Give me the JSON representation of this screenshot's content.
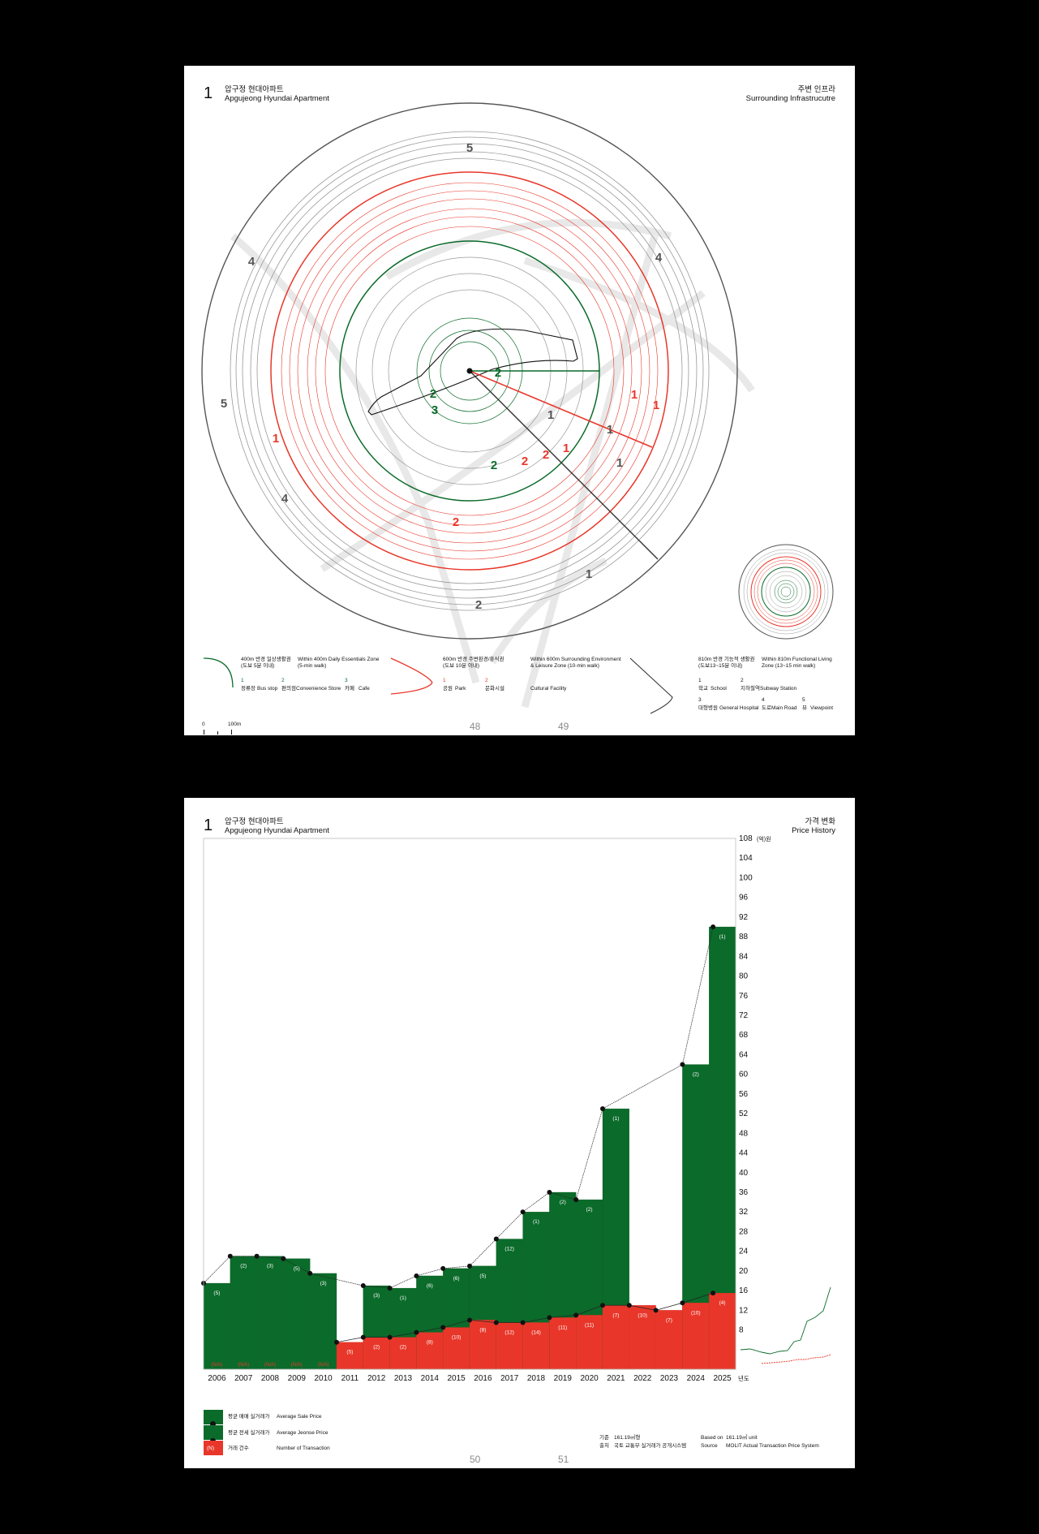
{
  "page1": {
    "number": "1",
    "title_ko": "압구정 현대아파트",
    "title_en": "Apgujeong Hyundai Apartment",
    "section_ko": "주변 인프라",
    "section_en": "Surrounding Infrastrucutre",
    "page_left": "48",
    "page_right": "49",
    "scale_zero": "0",
    "scale_label": "100m",
    "ring_labels": [
      {
        "t": "5",
        "c": "#555555"
      },
      {
        "t": "4",
        "c": "#555555"
      },
      {
        "t": "4",
        "c": "#555555"
      },
      {
        "t": "5",
        "c": "#555555"
      },
      {
        "t": "4",
        "c": "#555555"
      },
      {
        "t": "2",
        "c": "#555555"
      },
      {
        "t": "1",
        "c": "#555555"
      },
      {
        "t": "1",
        "c": "#555555"
      },
      {
        "t": "1",
        "c": "#555555"
      },
      {
        "t": "1",
        "c": "#555555"
      },
      {
        "t": "1",
        "c": "#e8372a"
      },
      {
        "t": "1",
        "c": "#e8372a"
      },
      {
        "t": "1",
        "c": "#e8372a"
      },
      {
        "t": "1",
        "c": "#e8372a"
      },
      {
        "t": "2",
        "c": "#e8372a"
      },
      {
        "t": "2",
        "c": "#e8372a"
      },
      {
        "t": "2",
        "c": "#e8372a"
      },
      {
        "t": "2",
        "c": "#0b6b2a"
      },
      {
        "t": "2",
        "c": "#0b6b2a"
      },
      {
        "t": "3",
        "c": "#0b6b2a"
      },
      {
        "t": "2",
        "c": "#0b6b2a"
      }
    ],
    "legend": {
      "zone400": {
        "ko": "400m 반경 일상생활권",
        "ko2": "(도보 5분 이내)",
        "en": "Within 400m Daily Essentials Zone",
        "en2": "(5-min walk)",
        "items": [
          {
            "n": "1",
            "ko": "정류장",
            "en": "Bus stop"
          },
          {
            "n": "2",
            "ko": "편의점",
            "en": "Convenience Store"
          },
          {
            "n": "3",
            "ko": "카페",
            "en": "Cafe"
          }
        ]
      },
      "zone600": {
        "ko": "600m 반경 주변환경/휴식권",
        "ko2": "(도보 10분 이내)",
        "en": "Within 600m Surrounding Environment",
        "en2": "& Leisure Zone (10-min walk)",
        "items": [
          {
            "n": "1",
            "ko": "공원",
            "en": "Park"
          },
          {
            "n": "2",
            "ko": "문화시설",
            "en": "Cultural Facility"
          }
        ]
      },
      "zone810": {
        "ko": "810m 반경 기능적 생활권",
        "ko2": "(도보13~15분 이내)",
        "en": "Within 810m Functional Living",
        "en2": "Zone (13~15 min walk)",
        "items": [
          {
            "n": "1",
            "ko": "학교",
            "en": "School"
          },
          {
            "n": "2",
            "ko": "지하철역",
            "en": "Subway Station"
          },
          {
            "n": "3",
            "ko": "대형병원",
            "en": "General Hospital"
          },
          {
            "n": "4",
            "ko": "도로",
            "en": "Main Road"
          },
          {
            "n": "5",
            "ko": "뷰",
            "en": "Viewpoint"
          }
        ]
      }
    },
    "colors": {
      "green": "#0b6b2a",
      "red": "#e8372a",
      "grey": "#555555"
    }
  },
  "page2": {
    "number": "1",
    "title_ko": "압구정 현대아파트",
    "title_en": "Apgujeong Hyundai Apartment",
    "section_ko": "가격 변화",
    "section_en": "Price History",
    "page_left": "50",
    "page_right": "51",
    "legend": {
      "sale_ko": "평균 매매 실거래가",
      "sale_en": "Average Sale Price",
      "jeonse_ko": "평균 전세 실거래가",
      "jeonse_en": "Average Jeonse Price",
      "count_marker": "(N)",
      "count_ko": "거래 건수",
      "count_en": "Number of Transaction"
    },
    "source": {
      "basis_ko_label": "기준",
      "basis_ko": "161.19㎡형",
      "source_ko_label": "출처",
      "source_ko": "국토 교통부 실거래가 공개시스템",
      "basis_en_label": "Based on",
      "basis_en": "161.19㎡ unit",
      "source_en_label": "Source",
      "source_en": "MOLIT Actual Transaction Price System"
    }
  },
  "chart_data": {
    "type": "bar",
    "title": "",
    "xlabel": "년도",
    "ylabel": "(억)원",
    "ylim": [
      0,
      108
    ],
    "yticks": [
      8,
      12,
      16,
      20,
      24,
      28,
      32,
      36,
      40,
      44,
      48,
      52,
      56,
      60,
      64,
      68,
      72,
      76,
      80,
      84,
      88,
      92,
      96,
      100,
      104,
      108
    ],
    "categories": [
      "2006",
      "2007",
      "2008",
      "2009",
      "2010",
      "2011",
      "2012",
      "2013",
      "2014",
      "2015",
      "2016",
      "2017",
      "2018",
      "2019",
      "2020",
      "2021",
      "2022",
      "2023",
      "2024",
      "2025"
    ],
    "series": [
      {
        "name": "Average Sale Price",
        "color": "#0b6b2a",
        "values": [
          17.5,
          23,
          23,
          22.5,
          19.5,
          null,
          17,
          16.5,
          19,
          20.5,
          21,
          26.5,
          32,
          36,
          34.5,
          53,
          null,
          null,
          62,
          90
        ],
        "counts": [
          "(5)",
          "(2)",
          "(3)",
          "(5)",
          "(3)",
          "",
          "(3)",
          "(1)",
          "(6)",
          "(6)",
          "(5)",
          "(12)",
          "(1)",
          "(2)",
          "(2)",
          "(1)",
          "",
          "",
          "(2)",
          "(1)"
        ]
      },
      {
        "name": "Average Jeonse Price",
        "color": "#e8372a",
        "values": [
          null,
          null,
          null,
          null,
          null,
          5.5,
          6.5,
          6.5,
          7.5,
          8.5,
          10,
          9.5,
          9.5,
          10.5,
          11,
          13,
          13,
          12,
          13.5,
          15.5
        ],
        "counts": [
          "(N/A)",
          "(N/A)",
          "(N/A)",
          "(N/A)",
          "(N/A)",
          "(5)",
          "(2)",
          "(2)",
          "(8)",
          "(10)",
          "(8)",
          "(12)",
          "(14)",
          "(11)",
          "(11)",
          "(7)",
          "(10)",
          "(7)",
          "(10)",
          "(4)"
        ]
      }
    ],
    "legend": "bottom-left",
    "grid": false
  }
}
